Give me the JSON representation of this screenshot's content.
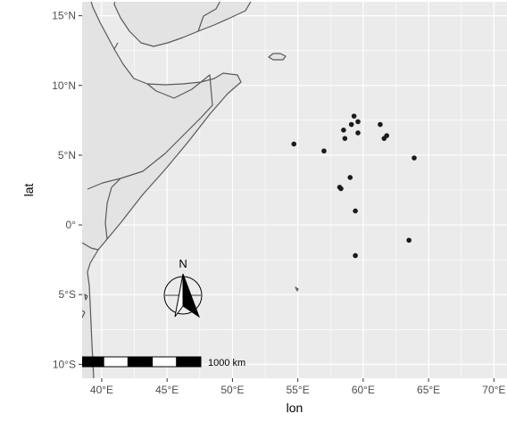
{
  "map": {
    "x_axis_title": "lon",
    "y_axis_title": "lat",
    "x_ticks": [
      {
        "value": 40,
        "label": "40°E"
      },
      {
        "value": 45,
        "label": "45°E"
      },
      {
        "value": 50,
        "label": "50°E"
      },
      {
        "value": 55,
        "label": "55°E"
      },
      {
        "value": 60,
        "label": "60°E"
      },
      {
        "value": 65,
        "label": "65°E"
      },
      {
        "value": 70,
        "label": "70°E"
      }
    ],
    "y_ticks": [
      {
        "value": 15,
        "label": "15°N"
      },
      {
        "value": 10,
        "label": "10°N"
      },
      {
        "value": 5,
        "label": "5°N"
      },
      {
        "value": 0,
        "label": "0°"
      },
      {
        "value": -5,
        "label": "5°S"
      },
      {
        "value": -10,
        "label": "10°S"
      }
    ],
    "xlim": [
      38.5,
      71
    ],
    "ylim": [
      -11,
      16
    ],
    "colors": {
      "panel": "#ebebeb",
      "land": "#e3e3e3",
      "border": "#595959",
      "gridline": "#ffffff",
      "point": "#1a1a1a"
    },
    "scale_bar": {
      "label": "1000 km"
    },
    "north_arrow": {
      "label": "N"
    },
    "points": [
      {
        "lon": 59.3,
        "lat": 7.8
      },
      {
        "lon": 59.6,
        "lat": 7.4
      },
      {
        "lon": 59.1,
        "lat": 7.2
      },
      {
        "lon": 61.3,
        "lat": 7.2
      },
      {
        "lon": 58.5,
        "lat": 6.8
      },
      {
        "lon": 59.6,
        "lat": 6.6
      },
      {
        "lon": 61.8,
        "lat": 6.4
      },
      {
        "lon": 61.6,
        "lat": 6.2
      },
      {
        "lon": 58.6,
        "lat": 6.2
      },
      {
        "lon": 54.7,
        "lat": 5.8
      },
      {
        "lon": 57.0,
        "lat": 5.3
      },
      {
        "lon": 63.9,
        "lat": 4.8
      },
      {
        "lon": 59.0,
        "lat": 3.4
      },
      {
        "lon": 58.2,
        "lat": 2.7
      },
      {
        "lon": 58.3,
        "lat": 2.6
      },
      {
        "lon": 59.4,
        "lat": 1.0
      },
      {
        "lon": 63.5,
        "lat": -1.1
      },
      {
        "lon": 59.4,
        "lat": -2.2
      }
    ]
  }
}
